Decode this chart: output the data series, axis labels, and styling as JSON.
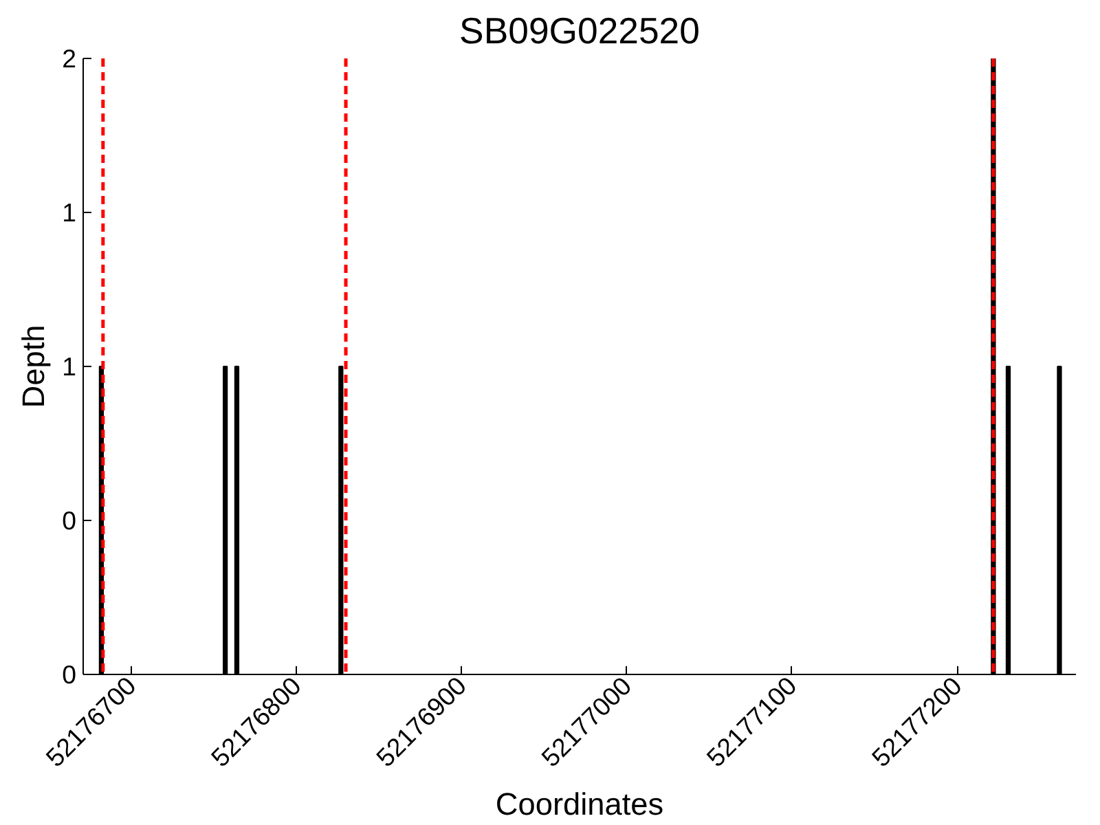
{
  "chart_data": {
    "type": "bar",
    "title": "SB09G022520",
    "xlabel": "Coordinates",
    "ylabel": "Depth",
    "x": [
      52176682,
      52176757,
      52176764,
      52176827,
      52177222,
      52177231,
      52177262
    ],
    "values": [
      1,
      1,
      1,
      1,
      2,
      1,
      1
    ],
    "color": "#000000",
    "xlim": [
      52176671,
      52177272
    ],
    "xticks": [
      52176700,
      52176800,
      52176900,
      52177000,
      52177100,
      52177200
    ],
    "ylim": [
      0,
      2
    ],
    "yticks": [
      0,
      {
        "value": 0.5,
        "label": "0"
      },
      1,
      {
        "value": 1.5,
        "label": "1"
      },
      2
    ],
    "ref_lines": [
      {
        "axis": "x",
        "value": 52176683,
        "color": "#ff0000",
        "line_style": "dashed"
      },
      {
        "axis": "x",
        "value": 52176830,
        "color": "#ff0000",
        "line_style": "dashed"
      },
      {
        "axis": "x",
        "value": 52177222,
        "color": "#ff0000",
        "line_style": "dashed"
      }
    ],
    "grid": false
  }
}
